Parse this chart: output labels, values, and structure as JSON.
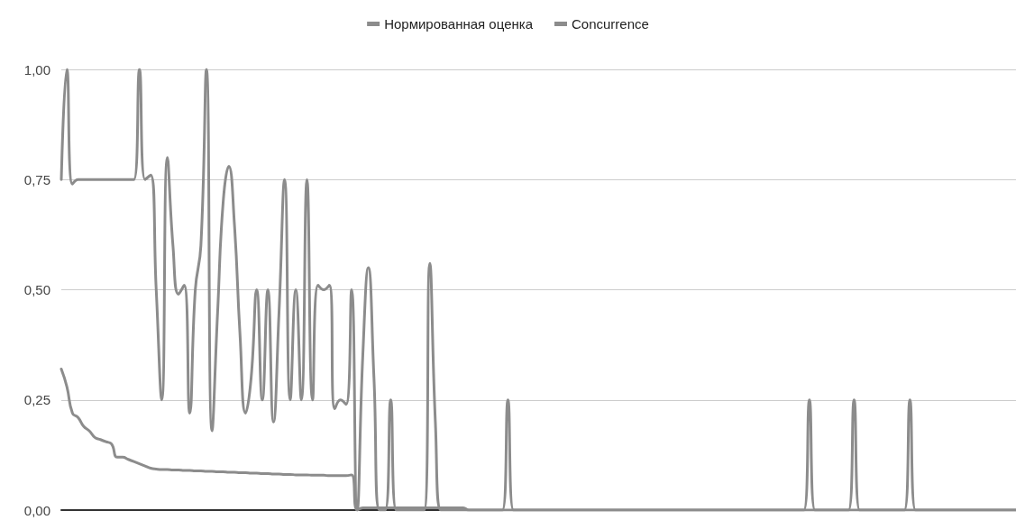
{
  "chart_data": {
    "type": "line",
    "legend": "top",
    "grid": "y",
    "line_style": "solid",
    "tick_labels": "y",
    "categories": [
      null,
      null,
      null,
      null,
      null,
      null,
      null,
      null,
      null,
      null,
      null,
      null,
      null,
      null,
      null,
      null,
      null,
      null,
      null,
      null,
      null,
      null,
      null,
      null,
      null,
      null,
      null,
      null,
      null,
      null,
      null,
      null,
      null,
      null,
      null,
      null,
      null,
      null,
      null,
      null,
      null,
      null,
      null,
      null,
      null,
      null,
      null,
      null,
      null,
      null,
      null,
      null,
      null,
      null,
      null,
      null,
      null,
      null,
      null,
      null,
      null,
      null,
      null,
      null,
      null,
      null,
      null,
      null,
      null,
      null,
      null,
      null,
      null,
      null,
      null,
      null,
      null,
      null,
      null,
      null,
      null,
      null,
      null,
      null,
      null,
      null,
      null,
      null,
      null,
      null,
      null,
      null,
      null,
      null,
      null,
      null,
      null,
      null,
      null,
      null,
      null,
      null,
      null,
      null,
      null,
      null,
      null,
      null,
      null,
      null,
      null,
      null,
      null,
      null,
      null,
      null,
      null,
      null,
      null,
      null,
      null,
      null,
      null,
      null,
      null,
      null,
      null,
      null,
      null,
      null,
      null,
      null,
      null,
      null,
      null,
      null,
      null,
      null,
      null,
      null,
      null,
      null,
      null,
      null,
      null,
      null,
      null,
      null,
      null,
      null,
      null,
      null,
      null,
      null,
      null,
      null,
      null,
      null,
      null,
      null,
      null,
      null,
      null,
      null,
      null,
      null,
      null,
      null,
      null,
      null,
      null,
      null
    ],
    "ylim": [
      0,
      1
    ],
    "yticks": [
      {
        "value": 0,
        "label": "0,00"
      },
      {
        "value": 0.25,
        "label": "0,25"
      },
      {
        "value": 0.5,
        "label": "0,50"
      },
      {
        "value": 0.75,
        "label": "0,75"
      },
      {
        "value": 1,
        "label": "1,00"
      }
    ],
    "series": [
      {
        "name": "Нормированная оценка",
        "color": "#8c8c8c",
        "values": [
          0.32,
          0.28,
          0.22,
          0.21,
          0.19,
          0.18,
          0.165,
          0.16,
          0.155,
          0.15,
          0.12,
          0.12,
          0.115,
          0.11,
          0.105,
          0.1,
          0.095,
          0.093,
          0.092,
          0.092,
          0.091,
          0.091,
          0.09,
          0.09,
          0.089,
          0.089,
          0.088,
          0.088,
          0.087,
          0.087,
          0.086,
          0.086,
          0.085,
          0.085,
          0.084,
          0.084,
          0.083,
          0.083,
          0.082,
          0.082,
          0.081,
          0.081,
          0.08,
          0.08,
          0.08,
          0.079,
          0.079,
          0.079,
          0.078,
          0.078,
          0.078,
          0.078,
          0.08,
          0,
          0.005,
          0.005,
          0.005,
          0.005,
          0.005,
          0.005,
          0.005,
          0.005,
          0.005,
          0.005,
          0.005,
          0.005,
          0.005,
          0.005,
          0.005,
          0.005,
          0.005,
          0.005,
          0.005,
          0,
          0,
          0,
          0,
          0,
          0,
          0,
          0,
          0,
          0,
          0,
          0,
          0,
          0,
          0,
          0,
          0,
          0,
          0,
          0,
          0,
          0,
          0,
          0,
          0,
          0,
          0,
          0,
          0,
          0,
          0,
          0,
          0,
          0,
          0,
          0,
          0,
          0,
          0,
          0,
          0,
          0,
          0,
          0,
          0,
          0,
          0,
          0,
          0,
          0,
          0,
          0,
          0,
          0,
          0,
          0,
          0,
          0,
          0,
          0,
          0,
          0,
          0,
          0,
          0,
          0,
          0,
          0,
          0,
          0,
          0,
          0,
          0,
          0,
          0,
          0,
          0,
          0,
          0,
          0,
          0,
          0,
          0,
          0,
          0,
          0,
          0,
          0,
          0,
          0,
          0,
          0,
          0,
          0,
          0,
          0,
          0,
          0,
          0
        ]
      },
      {
        "name": "Concurrence",
        "color": "#8c8c8c",
        "values": [
          0.75,
          1,
          0.74,
          0.75,
          0.75,
          0.75,
          0.75,
          0.75,
          0.75,
          0.75,
          0.75,
          0.75,
          0.75,
          0.75,
          1,
          0.75,
          0.76,
          0.5,
          0.25,
          0.8,
          0.6,
          0.49,
          0.51,
          0.22,
          0.5,
          0.6,
          1,
          0.18,
          0.45,
          0.7,
          0.78,
          0.65,
          0.4,
          0.22,
          0.3,
          0.5,
          0.25,
          0.5,
          0.2,
          0.45,
          0.75,
          0.25,
          0.5,
          0.25,
          0.75,
          0.25,
          0.51,
          0.5,
          0.51,
          0.23,
          0.25,
          0.24,
          0.5,
          0,
          0.35,
          0.55,
          0.3,
          0,
          0,
          0.25,
          0,
          0,
          0,
          0,
          0,
          0,
          0.56,
          0.2,
          0,
          0,
          0,
          0,
          0,
          0,
          0,
          0,
          0,
          0,
          0,
          0,
          0.25,
          0,
          0,
          0,
          0,
          0,
          0,
          0,
          0,
          0,
          0,
          0,
          0,
          0,
          0,
          0,
          0,
          0,
          0,
          0,
          0,
          0,
          0,
          0,
          0,
          0,
          0,
          0,
          0,
          0,
          0,
          0,
          0,
          0,
          0,
          0,
          0,
          0,
          0,
          0,
          0,
          0,
          0,
          0,
          0,
          0,
          0,
          0,
          0,
          0,
          0,
          0,
          0,
          0,
          0.25,
          0,
          0,
          0,
          0,
          0,
          0,
          0,
          0.25,
          0,
          0,
          0,
          0,
          0,
          0,
          0,
          0,
          0,
          0.25,
          0,
          0,
          0,
          0,
          0,
          0,
          0,
          0,
          0,
          0,
          0,
          0,
          0,
          0,
          0,
          0,
          0,
          0,
          0
        ]
      }
    ]
  }
}
